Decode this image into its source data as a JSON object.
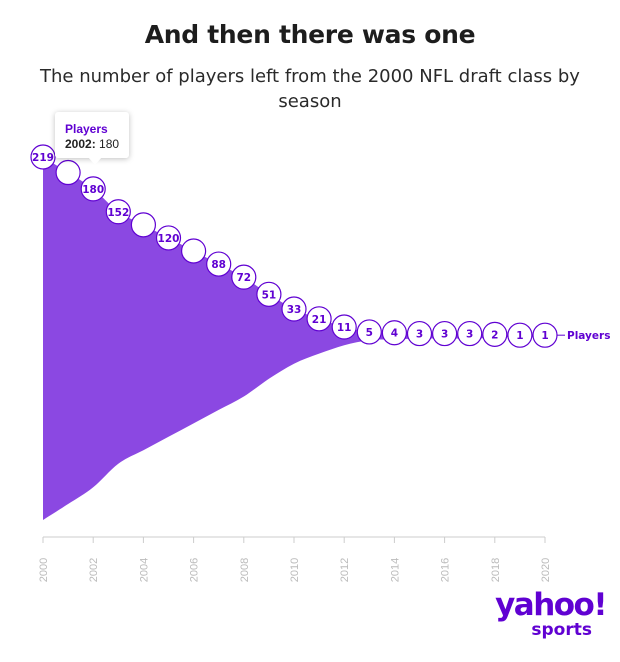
{
  "title": "And then there was one",
  "subtitle": "The number of players left from the 2000 NFL draft class by season",
  "tooltip": {
    "series": "Players",
    "year": "2002:",
    "value": "180"
  },
  "logo": {
    "main": "yahoo!",
    "sub": "sports"
  },
  "colors": {
    "accent": "#6001d2",
    "area": "#8b48e2",
    "axis": "#cccccc"
  },
  "chart_data": {
    "type": "area",
    "series": [
      {
        "name": "Players",
        "x": [
          2000,
          2001,
          2002,
          2003,
          2004,
          2005,
          2006,
          2007,
          2008,
          2009,
          2010,
          2011,
          2012,
          2013,
          2014,
          2015,
          2016,
          2017,
          2018,
          2019,
          2020
        ],
        "values": [
          219,
          200,
          180,
          152,
          136,
          120,
          104,
          88,
          72,
          51,
          33,
          21,
          11,
          5,
          4,
          3,
          3,
          3,
          2,
          1,
          1
        ],
        "labels": [
          "219",
          "",
          "180",
          "152",
          "",
          "120",
          "",
          "88",
          "72",
          "51",
          "33",
          "21",
          "11",
          "5",
          "4",
          "3",
          "3",
          "3",
          "2",
          "1",
          "1"
        ]
      }
    ],
    "x_ticks": [
      "2000",
      "2002",
      "2004",
      "2006",
      "2008",
      "2010",
      "2012",
      "2014",
      "2016",
      "2018",
      "2020"
    ],
    "xlim": [
      2000,
      2020
    ],
    "grid": false,
    "legend": "series label at end of line"
  }
}
